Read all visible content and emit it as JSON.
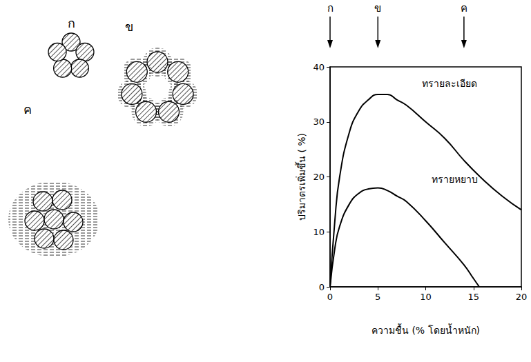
{
  "chart_data": {
    "type": "line",
    "x_label": "ความชื้น (% โดยน้ำหนัก)",
    "y_label": "ปริมาตรเพิ่มขึ้น ( %)",
    "xlim": [
      0,
      20
    ],
    "xticks": [
      0,
      5,
      10,
      15,
      20
    ],
    "ylim": [
      0,
      40
    ],
    "yticks": [
      0,
      10,
      20,
      30,
      40
    ],
    "grid": false,
    "series": [
      {
        "name": "ทรายละเอียด",
        "color": "#000000",
        "x": [
          0,
          0.5,
          1,
          2,
          3,
          4,
          5,
          6,
          7,
          8,
          10,
          12,
          14,
          16,
          18,
          20
        ],
        "values": [
          0,
          12,
          20,
          28,
          32,
          34,
          35,
          35,
          34,
          33,
          30,
          27,
          23,
          19.5,
          16.5,
          14
        ],
        "label_at": [
          12.5,
          37
        ]
      },
      {
        "name": "ทรายหยาบ",
        "color": "#000000",
        "x": [
          0,
          0.5,
          1,
          2,
          3,
          4,
          5,
          6,
          7,
          8,
          10,
          12,
          14,
          15,
          15.6
        ],
        "values": [
          0,
          7,
          11,
          15,
          17,
          17.8,
          18,
          17.5,
          16.5,
          15.5,
          12,
          8,
          4,
          1.5,
          0
        ],
        "label_at": [
          13,
          19.5
        ]
      }
    ],
    "markers": [
      {
        "label": "ก",
        "x": 0
      },
      {
        "label": "ข",
        "x": 5
      },
      {
        "label": "ค",
        "x": 14
      }
    ]
  },
  "diagrams": [
    {
      "label": "ก"
    },
    {
      "label": "ข"
    },
    {
      "label": "ค"
    }
  ]
}
